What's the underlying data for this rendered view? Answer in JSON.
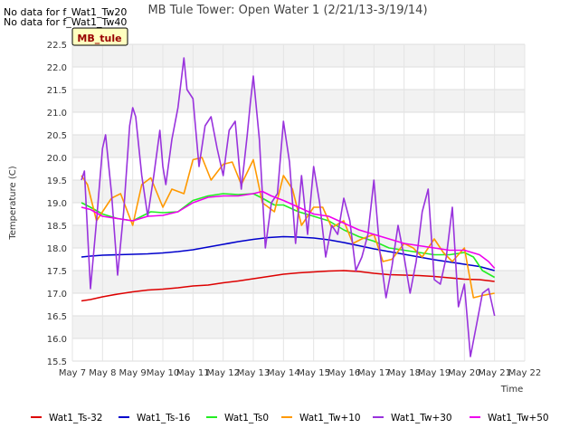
{
  "notes": [
    "No data for f_Wat1_Tw20",
    "No data for f_Wat1_Tw40"
  ],
  "site_badge": "MB_tule",
  "chart_data": {
    "type": "line",
    "title": "MB Tule Tower: Open Water 1 (2/21/13-3/19/14)",
    "xlabel": "Time",
    "ylabel": "Temperature (C)",
    "xlim": [
      7,
      22
    ],
    "ylim": [
      15.5,
      22.5
    ],
    "xticks": [
      {
        "value": 7,
        "label": "May 7"
      },
      {
        "value": 8,
        "label": "May 8"
      },
      {
        "value": 9,
        "label": "May 9"
      },
      {
        "value": 10,
        "label": "May 10"
      },
      {
        "value": 11,
        "label": "May 11"
      },
      {
        "value": 12,
        "label": "May 12"
      },
      {
        "value": 13,
        "label": "May 13"
      },
      {
        "value": 14,
        "label": "May 14"
      },
      {
        "value": 15,
        "label": "May 15"
      },
      {
        "value": 16,
        "label": "May 16"
      },
      {
        "value": 17,
        "label": "May 17"
      },
      {
        "value": 18,
        "label": "May 18"
      },
      {
        "value": 19,
        "label": "May 19"
      },
      {
        "value": 20,
        "label": "May 20"
      },
      {
        "value": 21,
        "label": "May 21"
      },
      {
        "value": 22,
        "label": "May 22"
      }
    ],
    "yticks": [
      "15.5",
      "16.0",
      "16.5",
      "17.0",
      "17.5",
      "18.0",
      "18.5",
      "19.0",
      "19.5",
      "20.0",
      "20.5",
      "21.0",
      "21.5",
      "22.0",
      "22.5"
    ],
    "grid": true,
    "legend_position": "bottom",
    "series": [
      {
        "name": "Wat1_Ts-32",
        "color": "#dd0000",
        "x": [
          7.3,
          7.6,
          8.0,
          8.5,
          9.0,
          9.5,
          10.0,
          10.5,
          11.0,
          11.5,
          12.0,
          12.5,
          13.0,
          13.5,
          14.0,
          14.5,
          15.0,
          15.5,
          16.0,
          16.5,
          17.0,
          17.5,
          18.0,
          18.5,
          19.0,
          19.5,
          20.0,
          20.5,
          21.0
        ],
        "values": [
          16.83,
          16.86,
          16.92,
          16.98,
          17.03,
          17.07,
          17.09,
          17.12,
          17.16,
          17.18,
          17.23,
          17.27,
          17.32,
          17.37,
          17.42,
          17.45,
          17.47,
          17.49,
          17.5,
          17.48,
          17.44,
          17.41,
          17.4,
          17.39,
          17.37,
          17.34,
          17.31,
          17.3,
          17.26
        ]
      },
      {
        "name": "Wat1_Ts-16",
        "color": "#0000cc",
        "x": [
          7.3,
          7.6,
          8.0,
          8.5,
          9.0,
          9.5,
          10.0,
          10.5,
          11.0,
          11.5,
          12.0,
          12.5,
          13.0,
          13.5,
          14.0,
          14.5,
          15.0,
          15.5,
          16.0,
          16.5,
          17.0,
          17.5,
          18.0,
          18.5,
          19.0,
          19.5,
          20.0,
          20.5,
          21.0
        ],
        "values": [
          17.8,
          17.82,
          17.84,
          17.85,
          17.86,
          17.87,
          17.89,
          17.92,
          17.96,
          18.02,
          18.08,
          18.14,
          18.19,
          18.23,
          18.25,
          18.24,
          18.22,
          18.18,
          18.12,
          18.05,
          17.98,
          17.92,
          17.86,
          17.8,
          17.74,
          17.69,
          17.64,
          17.59,
          17.5
        ]
      },
      {
        "name": "Wat1_Ts0",
        "color": "#22ee22",
        "x": [
          7.3,
          7.6,
          8.0,
          8.5,
          9.0,
          9.3,
          9.6,
          10.0,
          10.5,
          11.0,
          11.5,
          12.0,
          12.5,
          13.0,
          13.3,
          13.7,
          14.0,
          14.5,
          15.0,
          15.5,
          16.0,
          16.5,
          17.0,
          17.5,
          18.0,
          18.5,
          19.0,
          19.5,
          20.0,
          20.3,
          20.6,
          21.0
        ],
        "values": [
          19.0,
          18.9,
          18.75,
          18.65,
          18.6,
          18.7,
          18.8,
          18.78,
          18.8,
          19.05,
          19.15,
          19.2,
          19.18,
          19.2,
          19.1,
          18.95,
          18.95,
          18.8,
          18.7,
          18.6,
          18.4,
          18.25,
          18.15,
          18.0,
          17.95,
          17.9,
          17.85,
          17.85,
          17.9,
          17.8,
          17.5,
          17.35
        ]
      },
      {
        "name": "Wat1_Tw+10",
        "color": "#ff9900",
        "x": [
          7.3,
          7.5,
          7.8,
          8.0,
          8.3,
          8.6,
          9.0,
          9.3,
          9.6,
          10.0,
          10.3,
          10.7,
          11.0,
          11.3,
          11.6,
          12.0,
          12.3,
          12.6,
          13.0,
          13.3,
          13.7,
          14.0,
          14.3,
          14.6,
          15.0,
          15.3,
          15.6,
          16.0,
          16.3,
          16.6,
          17.0,
          17.3,
          17.6,
          18.0,
          18.3,
          18.6,
          19.0,
          19.3,
          19.6,
          20.0,
          20.3,
          20.6,
          21.0
        ],
        "values": [
          19.6,
          19.4,
          18.6,
          18.8,
          19.1,
          19.2,
          18.5,
          19.4,
          19.55,
          18.9,
          19.3,
          19.2,
          19.95,
          20.0,
          19.5,
          19.85,
          19.9,
          19.4,
          19.95,
          19.0,
          18.8,
          19.6,
          19.3,
          18.5,
          18.9,
          18.9,
          18.45,
          18.6,
          18.1,
          18.2,
          18.3,
          17.7,
          17.75,
          18.1,
          18.0,
          17.8,
          18.2,
          17.9,
          17.7,
          18.0,
          16.9,
          16.95,
          17.0
        ]
      },
      {
        "name": "Wat1_Tw+30",
        "color": "#9933dd",
        "x": [
          7.3,
          7.4,
          7.6,
          7.8,
          8.0,
          8.1,
          8.3,
          8.5,
          8.7,
          8.9,
          9.0,
          9.1,
          9.3,
          9.5,
          9.7,
          9.9,
          10.0,
          10.1,
          10.3,
          10.5,
          10.7,
          10.8,
          11.0,
          11.2,
          11.4,
          11.6,
          11.8,
          12.0,
          12.2,
          12.4,
          12.6,
          12.8,
          12.9,
          13.0,
          13.2,
          13.4,
          13.6,
          13.8,
          14.0,
          14.2,
          14.4,
          14.6,
          14.8,
          15.0,
          15.2,
          15.4,
          15.6,
          15.8,
          16.0,
          16.2,
          16.4,
          16.6,
          16.8,
          17.0,
          17.2,
          17.4,
          17.6,
          17.8,
          18.0,
          18.2,
          18.4,
          18.6,
          18.8,
          19.0,
          19.2,
          19.4,
          19.6,
          19.8,
          20.0,
          20.2,
          20.4,
          20.6,
          20.8,
          21.0
        ],
        "values": [
          19.5,
          19.7,
          17.1,
          18.6,
          20.2,
          20.5,
          19.2,
          17.4,
          18.8,
          20.7,
          21.1,
          20.9,
          19.6,
          18.7,
          19.6,
          20.6,
          19.8,
          19.4,
          20.4,
          21.1,
          22.2,
          21.5,
          21.3,
          19.8,
          20.7,
          20.9,
          20.2,
          19.6,
          20.6,
          20.8,
          19.3,
          20.5,
          21.2,
          21.8,
          20.4,
          18.0,
          19.0,
          19.2,
          20.8,
          19.9,
          18.1,
          19.6,
          18.3,
          19.8,
          19.0,
          17.8,
          18.5,
          18.3,
          19.1,
          18.6,
          17.5,
          17.8,
          18.3,
          19.5,
          17.9,
          16.9,
          17.6,
          18.5,
          17.8,
          17.0,
          17.7,
          18.8,
          19.3,
          17.3,
          17.2,
          17.8,
          18.9,
          16.7,
          17.2,
          15.6,
          16.3,
          17.0,
          17.1,
          16.5
        ]
      },
      {
        "name": "Wat1_Tw+50",
        "color": "#ee00ee",
        "x": [
          7.3,
          7.6,
          8.0,
          8.5,
          9.0,
          9.5,
          10.0,
          10.5,
          11.0,
          11.5,
          12.0,
          12.5,
          13.0,
          13.3,
          13.6,
          14.0,
          14.5,
          15.0,
          15.5,
          16.0,
          16.5,
          17.0,
          17.5,
          18.0,
          18.5,
          19.0,
          19.5,
          20.0,
          20.5,
          20.8,
          21.0
        ],
        "values": [
          18.9,
          18.85,
          18.7,
          18.65,
          18.6,
          18.7,
          18.72,
          18.8,
          19.0,
          19.12,
          19.15,
          19.15,
          19.2,
          19.25,
          19.15,
          19.05,
          18.9,
          18.75,
          18.7,
          18.55,
          18.4,
          18.3,
          18.2,
          18.1,
          18.05,
          18.0,
          17.95,
          17.95,
          17.85,
          17.7,
          17.55
        ]
      }
    ]
  }
}
